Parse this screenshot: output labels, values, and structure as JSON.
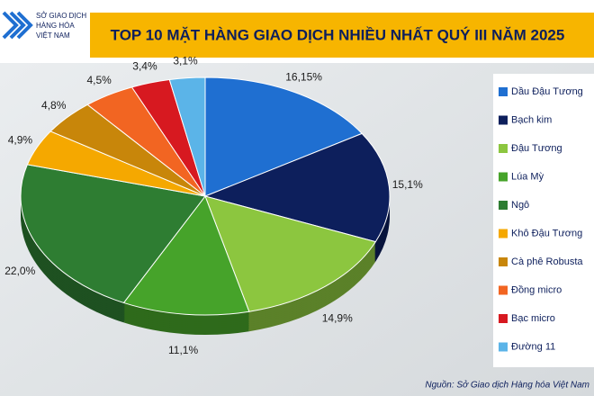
{
  "header": {
    "logo_lines": [
      "SỞ GIAO DỊCH",
      "HÀNG HÓA",
      "VIỆT NAM"
    ]
  },
  "chart_data": {
    "type": "pie",
    "title": "TOP 10 MẶT HÀNG GIAO DỊCH NHIỀU NHẤT QUÝ III NĂM 2025",
    "categories": [
      "Dầu Đậu Tương",
      "Bạch kim",
      "Đậu Tương",
      "Lúa Mỳ",
      "Ngô",
      "Khô Đậu Tương",
      "Cà phê Robusta",
      "Đồng micro",
      "Bạc micro",
      "Đường 11"
    ],
    "values": [
      16.15,
      15.1,
      14.9,
      11.1,
      22.0,
      4.9,
      4.8,
      4.5,
      3.4,
      3.1
    ],
    "value_labels": [
      "16,15%",
      "15,1%",
      "14,9%",
      "11,1%",
      "22,0%",
      "4,9%",
      "4,8%",
      "4,5%",
      "3,4%",
      "3,1%"
    ],
    "colors": [
      "#1f6fd1",
      "#0d1f5c",
      "#8cc63f",
      "#46a32a",
      "#2e7d32",
      "#f5a800",
      "#c8860a",
      "#f26522",
      "#d71920",
      "#5bb4e8"
    ],
    "legend": "right",
    "source": "Nguồn: Sở Giao dịch Hàng hóa Việt Nam"
  }
}
